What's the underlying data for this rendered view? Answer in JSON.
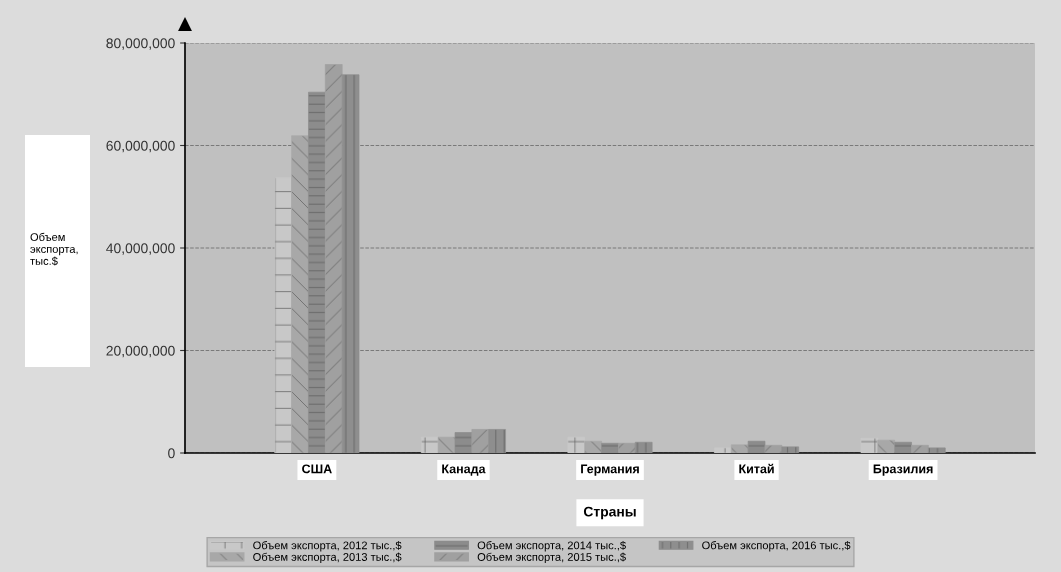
{
  "chart_data": {
    "type": "bar",
    "ylabel": "Объем\nэкспорта,\nтыс.$",
    "xlabel": "Страны",
    "categories": [
      "США",
      "Канада",
      "Германия",
      "Китай",
      "Бразилия"
    ],
    "series": [
      {
        "name": "Объем экспорта, 2012 тыс.,$",
        "color": "#c8c8c8",
        "values": [
          53700000,
          3100000,
          3100000,
          1000000,
          2900000
        ]
      },
      {
        "name": "Объем экспорта, 2013 тыс.,$",
        "color": "#a8a8a8",
        "values": [
          61900000,
          3100000,
          2300000,
          1600000,
          2500000
        ]
      },
      {
        "name": "Объем экспорта, 2014 тыс.,$",
        "color": "#8c8c8c",
        "values": [
          70400000,
          4000000,
          1900000,
          2300000,
          2100000
        ]
      },
      {
        "name": "Объем экспорта, 2015 тыс.,$",
        "color": "#a0a0a0",
        "values": [
          75800000,
          4600000,
          1900000,
          1500000,
          1500000
        ]
      },
      {
        "name": "Объем экспорта, 2016 тыс.,$",
        "color": "#8e8e8e",
        "values": [
          73800000,
          4600000,
          2100000,
          1200000,
          1000000
        ]
      }
    ],
    "ylim": [
      0,
      80000000
    ],
    "yticks": [
      {
        "value": 0,
        "label": "0"
      },
      {
        "value": 20000000,
        "label": "20,000,000"
      },
      {
        "value": 40000000,
        "label": "40,000,000"
      },
      {
        "value": 60000000,
        "label": "60,000,000"
      },
      {
        "value": 80000000,
        "label": "80,000,000"
      }
    ],
    "grid": "y",
    "legend": "bottom"
  }
}
